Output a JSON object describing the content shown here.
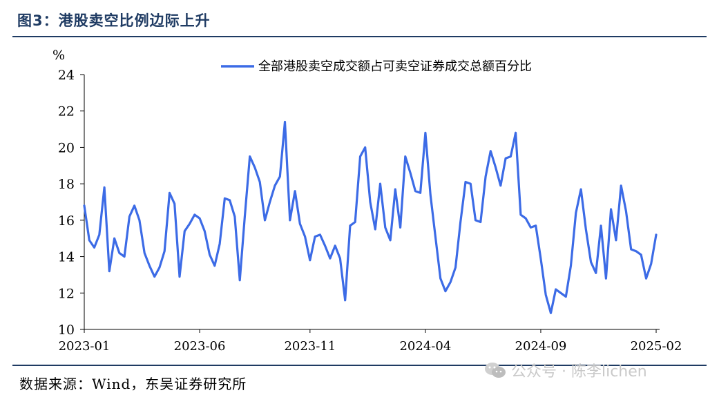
{
  "figure": {
    "title": "图3：港股卖空比例边际上升",
    "source": "数据来源：Wind，东吴证券研究所",
    "watermark": "公众号 · 陈李lichen",
    "watermark_icon": "wechat-icon"
  },
  "colors": {
    "line": "#3c6be6",
    "title": "#1f3b63",
    "axis": "#000000"
  },
  "chart_data": {
    "type": "line",
    "title": "",
    "unit_label": "%",
    "xlabel": "",
    "ylabel": "%",
    "ylim": [
      10,
      24
    ],
    "yticks": [
      10,
      12,
      14,
      16,
      18,
      20,
      22,
      24
    ],
    "grid": false,
    "legend": "top-center",
    "xticks": [
      "2023-01",
      "2023-06",
      "2023-11",
      "2024-04",
      "2024-09",
      "2025-02"
    ],
    "series": [
      {
        "name": "全部港股卖空成交额占可卖空证券成交总额百分比",
        "values": [
          16.8,
          14.9,
          14.5,
          15.2,
          17.8,
          13.2,
          15.0,
          14.2,
          14.0,
          16.2,
          16.8,
          16.0,
          14.2,
          13.5,
          12.9,
          13.4,
          14.3,
          17.5,
          16.9,
          12.9,
          15.4,
          15.8,
          16.3,
          16.1,
          15.4,
          14.1,
          13.5,
          14.7,
          17.2,
          17.1,
          16.2,
          12.7,
          16.2,
          19.5,
          18.9,
          18.1,
          16.0,
          17.0,
          17.9,
          18.4,
          21.4,
          16.0,
          17.6,
          15.8,
          15.1,
          13.8,
          15.1,
          15.2,
          14.6,
          13.9,
          14.6,
          13.9,
          11.6,
          15.7,
          15.9,
          19.5,
          20.0,
          17.0,
          15.5,
          18.0,
          15.6,
          14.9,
          17.7,
          15.6,
          19.5,
          18.6,
          17.6,
          17.5,
          20.8,
          17.4,
          15.1,
          12.8,
          12.1,
          12.6,
          13.4,
          15.9,
          18.1,
          18.0,
          16.0,
          15.9,
          18.4,
          19.8,
          18.9,
          17.9,
          19.4,
          19.5,
          20.8,
          16.3,
          16.1,
          15.6,
          15.7,
          13.9,
          11.9,
          10.9,
          12.2,
          12.0,
          11.8,
          13.5,
          16.4,
          17.7,
          15.5,
          13.7,
          13.1,
          15.7,
          12.8,
          16.6,
          14.9,
          17.9,
          16.5,
          14.4,
          14.3,
          14.1,
          12.8,
          13.6,
          15.2
        ]
      }
    ]
  }
}
